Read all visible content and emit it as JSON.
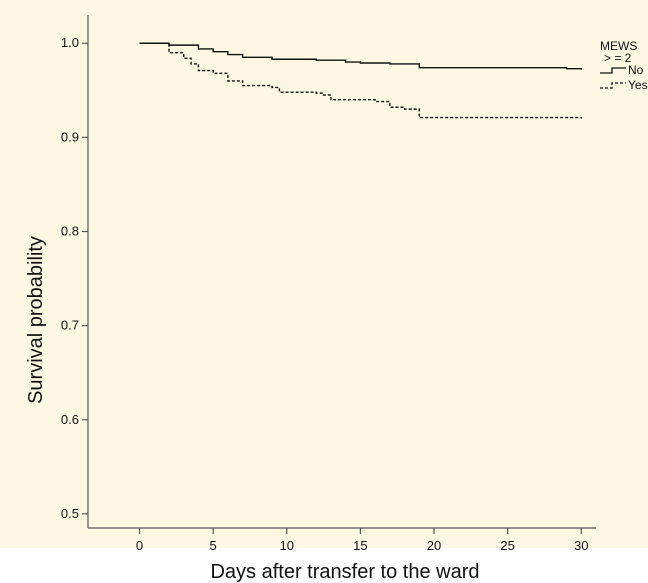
{
  "chart_data": {
    "type": "line",
    "step": true,
    "xlabel": "Days after transfer to the ward",
    "ylabel": "Survival probability",
    "xlim": [
      -3.5,
      31
    ],
    "ylim": [
      0.485,
      1.03
    ],
    "xticks": [
      0,
      5,
      10,
      15,
      20,
      25,
      30
    ],
    "yticks": [
      0.5,
      0.6,
      0.7,
      0.8,
      0.9,
      1.0
    ],
    "xtick_labels": [
      "0",
      "5",
      "10",
      "15",
      "20",
      "25",
      "30"
    ],
    "ytick_labels": [
      "0.5",
      "0.6",
      "0.7",
      "0.8",
      "0.9",
      "1.0"
    ],
    "grid": false,
    "legend": {
      "position": "top-right",
      "title_line1": "MEWS",
      "title_line2": "> = 2",
      "entries": [
        "No",
        "Yes"
      ]
    },
    "series": [
      {
        "name": "No",
        "line_style": "solid",
        "points": [
          [
            0,
            1.0
          ],
          [
            2,
            0.998
          ],
          [
            4,
            0.994
          ],
          [
            5,
            0.991
          ],
          [
            6,
            0.988
          ],
          [
            7,
            0.985
          ],
          [
            9,
            0.983
          ],
          [
            12,
            0.982
          ],
          [
            14,
            0.98
          ],
          [
            15,
            0.979
          ],
          [
            17,
            0.978
          ],
          [
            19,
            0.974
          ],
          [
            29,
            0.973
          ],
          [
            30,
            0.972
          ]
        ]
      },
      {
        "name": "Yes",
        "line_style": "dashed",
        "points": [
          [
            0,
            1.0
          ],
          [
            2,
            0.99
          ],
          [
            3,
            0.984
          ],
          [
            3.5,
            0.978
          ],
          [
            4,
            0.971
          ],
          [
            5,
            0.968
          ],
          [
            6,
            0.96
          ],
          [
            7,
            0.955
          ],
          [
            9,
            0.953
          ],
          [
            9.5,
            0.948
          ],
          [
            12,
            0.947
          ],
          [
            12.5,
            0.945
          ],
          [
            13,
            0.94
          ],
          [
            15,
            0.94
          ],
          [
            16,
            0.938
          ],
          [
            17,
            0.932
          ],
          [
            18,
            0.93
          ],
          [
            19,
            0.921
          ],
          [
            29,
            0.921
          ],
          [
            30,
            0.92
          ]
        ]
      }
    ]
  },
  "colors": {
    "plot_background": "#fdf7e4",
    "line": "#111111",
    "axis": "#555555"
  }
}
